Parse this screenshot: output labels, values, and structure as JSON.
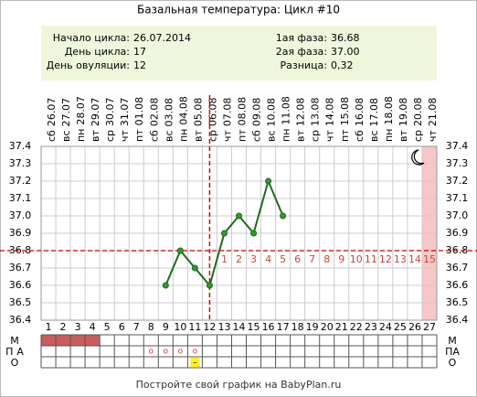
{
  "title": "Базальная температура: Цикл #10",
  "info": {
    "left": [
      {
        "label": "Начало цикла:",
        "value": "26.07.2014"
      },
      {
        "label": "День цикла:",
        "value": "17"
      },
      {
        "label": "День овуляции:",
        "value": "12"
      }
    ],
    "right": [
      {
        "label": "1ая фаза:",
        "value": "36.68"
      },
      {
        "label": "2ая фаза:",
        "value": "37.00"
      },
      {
        "label": "Разница:",
        "value": "0,32"
      }
    ]
  },
  "chart_data": {
    "type": "line",
    "x": [
      1,
      2,
      3,
      4,
      5,
      6,
      7,
      8,
      9,
      10,
      11,
      12,
      13,
      14,
      15,
      16,
      17,
      18,
      19,
      20,
      21,
      22,
      23,
      24,
      25,
      26,
      27
    ],
    "weekdays": [
      "сб",
      "вс",
      "пн",
      "вт",
      "ср",
      "чт",
      "пт",
      "сб",
      "вс",
      "пн",
      "вт",
      "ср",
      "чт",
      "пт",
      "сб",
      "вс",
      "пн",
      "вт",
      "ср",
      "чт",
      "пт",
      "сб",
      "вс",
      "пн",
      "вт",
      "ср",
      "чт"
    ],
    "dates": [
      "26.07",
      "27.07",
      "28.07",
      "29.07",
      "30.07",
      "31.07",
      "01.08",
      "02.08",
      "03.08",
      "04.08",
      "05.08",
      "06.08",
      "07.08",
      "08.08",
      "09.08",
      "10.08",
      "11.08",
      "12.08",
      "13.08",
      "14.08",
      "15.08",
      "16.08",
      "17.08",
      "18.08",
      "19.08",
      "20.08",
      "21.08"
    ],
    "values": [
      null,
      null,
      null,
      null,
      null,
      null,
      null,
      null,
      36.6,
      36.8,
      36.7,
      36.6,
      36.9,
      37.0,
      36.9,
      37.2,
      37.0,
      null,
      null,
      null,
      null,
      null,
      null,
      null,
      null,
      null,
      null
    ],
    "color": "#1e6b1e",
    "marker_color": "#2f9a2f",
    "ylim": [
      36.4,
      37.4
    ],
    "yticks": [
      36.4,
      36.5,
      36.6,
      36.7,
      36.8,
      36.9,
      {
        "value": 37.0,
        "label": "37.0"
      },
      37.1,
      37.2,
      37.3,
      37.4
    ],
    "grid": true,
    "coverline": 36.8,
    "ovulation_day": 12,
    "expected_period_day": 27,
    "phase2": {
      "x": [
        13,
        14,
        15,
        16,
        17,
        18,
        19,
        20,
        21,
        22,
        23,
        24,
        25,
        26,
        27
      ],
      "labels": [
        1,
        2,
        3,
        4,
        5,
        6,
        7,
        8,
        9,
        10,
        11,
        12,
        13,
        14,
        15
      ]
    },
    "rows": [
      {
        "label": "М",
        "days": [
          1,
          2,
          3,
          4
        ]
      },
      {
        "label": "ПА",
        "days": [
          8,
          9,
          10,
          11
        ],
        "symbol": "o"
      },
      {
        "label": "О",
        "days": [
          11
        ],
        "symbol": "–"
      }
    ]
  },
  "footer": "Постройте свой график на BabyPlan.ru"
}
